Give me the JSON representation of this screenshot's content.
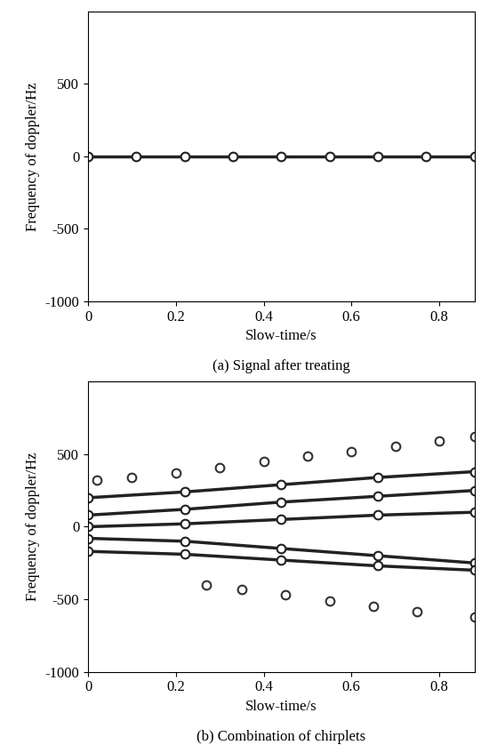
{
  "chart_data": [
    {
      "type": "line",
      "caption": "(a) Signal after treating",
      "x_label": "Slow-time/s",
      "y_label": "Frequency of doppler/Hz",
      "xlim": [
        0,
        0.88
      ],
      "ylim": [
        -1000,
        1000
      ],
      "xticks": [
        0,
        0.2,
        0.4,
        0.6,
        0.8
      ],
      "yticks": [
        -1000,
        -500,
        0,
        500
      ],
      "grid": false,
      "series": [
        {
          "color": "#222222",
          "marker": "o",
          "line_style": "solid",
          "x": [
            0,
            0.11,
            0.22,
            0.33,
            0.44,
            0.55,
            0.66,
            0.77,
            0.88
          ],
          "values": [
            0,
            0,
            0,
            0,
            0,
            0,
            0,
            0,
            0
          ]
        }
      ]
    },
    {
      "type": "line",
      "caption": "(b) Combination of chirplets",
      "x_label": "Slow-time/s",
      "y_label": "Frequency of doppler/Hz",
      "xlim": [
        0,
        0.88
      ],
      "ylim": [
        -1000,
        1000
      ],
      "xticks": [
        0,
        0.2,
        0.4,
        0.6,
        0.8
      ],
      "yticks": [
        -1000,
        -500,
        0,
        500
      ],
      "grid": false,
      "series": [
        {
          "color": "#333333",
          "marker": "o",
          "line_style": "none",
          "x": [
            0.02,
            0.1,
            0.2,
            0.3,
            0.4,
            0.5,
            0.6,
            0.7,
            0.8,
            0.88
          ],
          "values": [
            320,
            340,
            370,
            410,
            450,
            490,
            520,
            555,
            590,
            620
          ]
        },
        {
          "color": "#222222",
          "marker": "o",
          "line_style": "solid",
          "x": [
            0,
            0.22,
            0.44,
            0.66,
            0.88
          ],
          "values": [
            200,
            240,
            290,
            340,
            380
          ]
        },
        {
          "color": "#222222",
          "marker": "o",
          "line_style": "solid",
          "x": [
            0,
            0.22,
            0.44,
            0.66,
            0.88
          ],
          "values": [
            80,
            120,
            170,
            210,
            250
          ]
        },
        {
          "color": "#222222",
          "marker": "o",
          "line_style": "solid",
          "x": [
            0,
            0.22,
            0.44,
            0.66,
            0.88
          ],
          "values": [
            0,
            20,
            50,
            80,
            100
          ]
        },
        {
          "color": "#222222",
          "marker": "o",
          "line_style": "solid",
          "x": [
            0,
            0.22,
            0.44,
            0.66,
            0.88
          ],
          "values": [
            -80,
            -100,
            -150,
            -200,
            -250
          ]
        },
        {
          "color": "#222222",
          "marker": "o",
          "line_style": "solid",
          "x": [
            0,
            0.22,
            0.44,
            0.66,
            0.88
          ],
          "values": [
            -170,
            -190,
            -230,
            -270,
            -300
          ]
        },
        {
          "color": "#333333",
          "marker": "o",
          "line_style": "none",
          "x": [
            0.27,
            0.35,
            0.45,
            0.55,
            0.65,
            0.75,
            0.88
          ],
          "values": [
            -400,
            -430,
            -470,
            -510,
            -550,
            -585,
            -620
          ]
        }
      ]
    }
  ]
}
